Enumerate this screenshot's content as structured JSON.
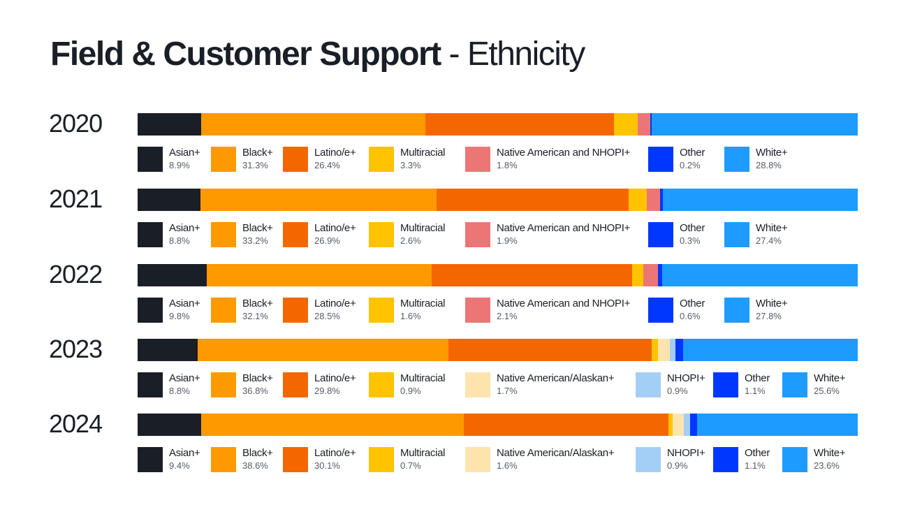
{
  "title": {
    "bold": "Field & Customer Support",
    "rest": " - Ethnicity"
  },
  "chart_data": {
    "type": "bar",
    "orientation": "horizontal-stacked-100",
    "title": "Field & Customer Support - Ethnicity",
    "unit": "%",
    "colors": {
      "Asian+": "#1a1e26",
      "Black+": "#ff9900",
      "Latino/e+": "#f46700",
      "Multiracial": "#ffc300",
      "Native American and NHOPI+": "#ec7676",
      "Native American/Alaskan+": "#fde3ad",
      "NHOPI+": "#a3cff7",
      "Other": "#0037ff",
      "White+": "#1e9bff"
    },
    "rows": [
      {
        "year": "2020",
        "series": [
          {
            "name": "Asian+",
            "value": 8.9,
            "label": "8.9%"
          },
          {
            "name": "Black+",
            "value": 31.3,
            "label": "31.3%"
          },
          {
            "name": "Latino/e+",
            "value": 26.4,
            "label": "26.4%"
          },
          {
            "name": "Multiracial",
            "value": 3.3,
            "label": "3.3%"
          },
          {
            "name": "Native American and NHOPI+",
            "value": 1.8,
            "label": "1.8%"
          },
          {
            "name": "Other",
            "value": 0.2,
            "label": "0.2%"
          },
          {
            "name": "White+",
            "value": 28.8,
            "label": "28.8%"
          }
        ]
      },
      {
        "year": "2021",
        "series": [
          {
            "name": "Asian+",
            "value": 8.8,
            "label": "8.8%"
          },
          {
            "name": "Black+",
            "value": 33.2,
            "label": "33.2%"
          },
          {
            "name": "Latino/e+",
            "value": 26.9,
            "label": "26.9%"
          },
          {
            "name": "Multiracial",
            "value": 2.6,
            "label": "2.6%"
          },
          {
            "name": "Native American and NHOPI+",
            "value": 1.9,
            "label": "1.9%"
          },
          {
            "name": "Other",
            "value": 0.3,
            "label": "0.3%"
          },
          {
            "name": "White+",
            "value": 27.4,
            "label": "27.4%"
          }
        ]
      },
      {
        "year": "2022",
        "series": [
          {
            "name": "Asian+",
            "value": 9.8,
            "label": "9.8%"
          },
          {
            "name": "Black+",
            "value": 32.1,
            "label": "32.1%"
          },
          {
            "name": "Latino/e+",
            "value": 28.5,
            "label": "28.5%"
          },
          {
            "name": "Multiracial",
            "value": 1.6,
            "label": "1.6%"
          },
          {
            "name": "Native American and NHOPI+",
            "value": 2.1,
            "label": "2.1%"
          },
          {
            "name": "Other",
            "value": 0.6,
            "label": "0.6%"
          },
          {
            "name": "White+",
            "value": 27.8,
            "label": "27.8%"
          }
        ]
      },
      {
        "year": "2023",
        "series": [
          {
            "name": "Asian+",
            "value": 8.8,
            "label": "8.8%"
          },
          {
            "name": "Black+",
            "value": 36.8,
            "label": "36.8%"
          },
          {
            "name": "Latino/e+",
            "value": 29.8,
            "label": "29.8%"
          },
          {
            "name": "Multiracial",
            "value": 0.9,
            "label": "0.9%"
          },
          {
            "name": "Native American/Alaskan+",
            "value": 1.7,
            "label": "1.7%"
          },
          {
            "name": "NHOPI+",
            "value": 0.9,
            "label": "0.9%"
          },
          {
            "name": "Other",
            "value": 1.1,
            "label": "1.1%"
          },
          {
            "name": "White+",
            "value": 25.6,
            "label": "25.6%"
          }
        ]
      },
      {
        "year": "2024",
        "series": [
          {
            "name": "Asian+",
            "value": 9.4,
            "label": "9.4%"
          },
          {
            "name": "Black+",
            "value": 38.6,
            "label": "38.6%"
          },
          {
            "name": "Latino/e+",
            "value": 30.1,
            "label": "30.1%"
          },
          {
            "name": "Multiracial",
            "value": 0.7,
            "label": "0.7%"
          },
          {
            "name": "Native American/Alaskan+",
            "value": 1.6,
            "label": "1.6%"
          },
          {
            "name": "NHOPI+",
            "value": 0.9,
            "label": "0.9%"
          },
          {
            "name": "Other",
            "value": 1.1,
            "label": "1.1%"
          },
          {
            "name": "White+",
            "value": 23.6,
            "label": "23.6%"
          }
        ]
      }
    ]
  }
}
